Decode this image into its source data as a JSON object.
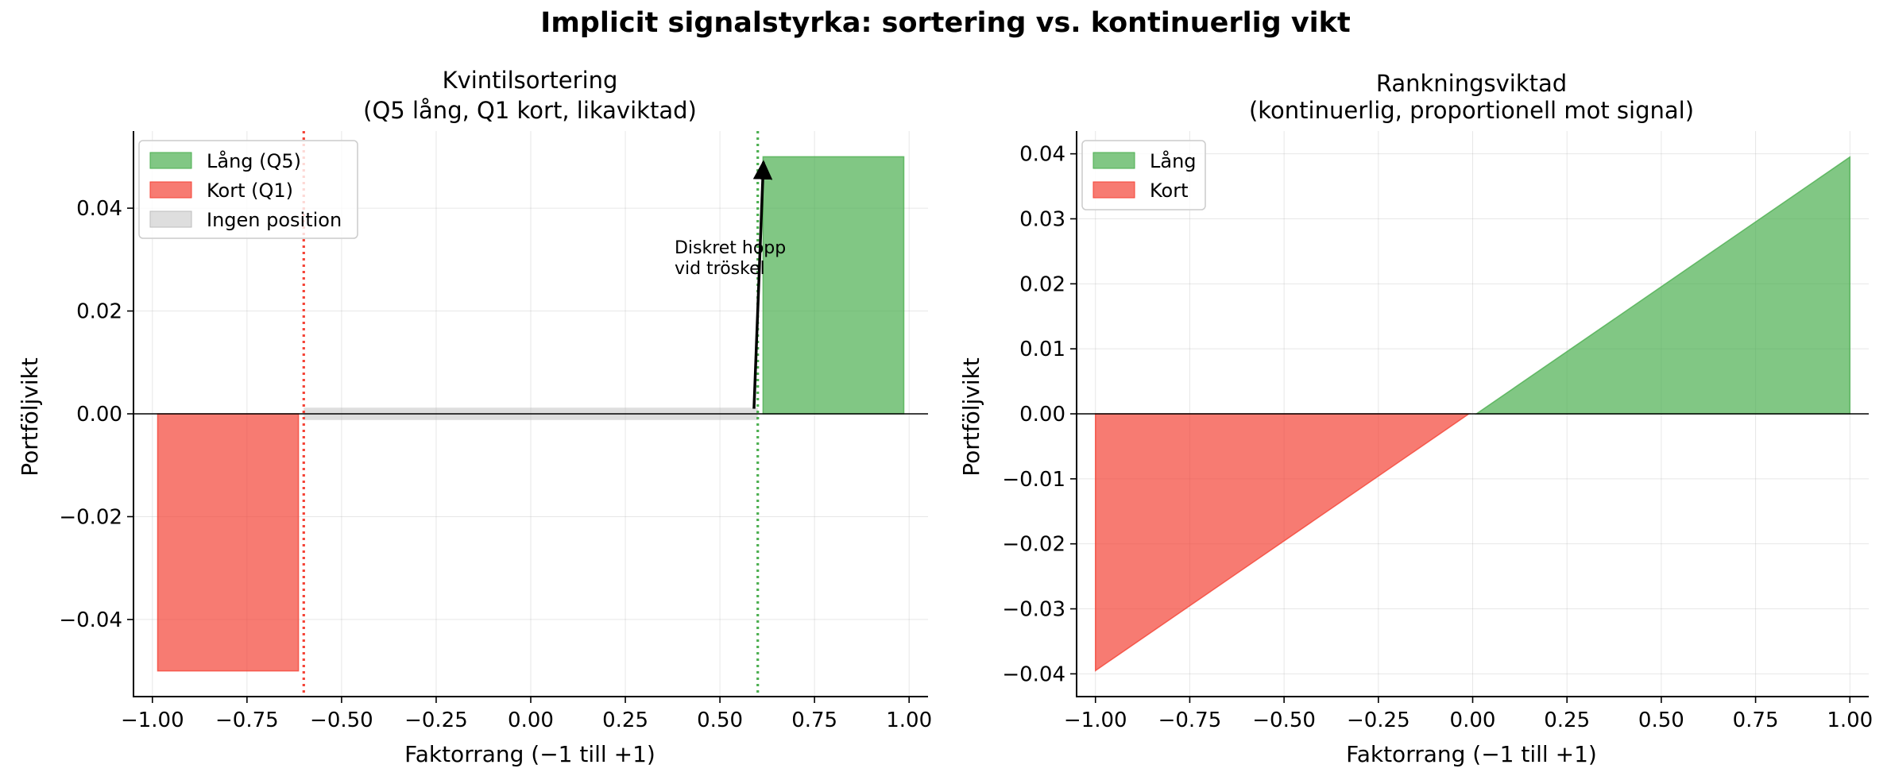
{
  "chart_data": [
    {
      "type": "bar",
      "figure_title": "Implicit signalstyrka: sortering vs. kontinuerlig vikt",
      "title_line1": "Kvintilsortering",
      "title_line2": "(Q5 lång, Q1 kort, likaviktad)",
      "xlabel": "Faktorrang (−1 till +1)",
      "ylabel": "Portföljvikt",
      "xlim": [
        -1.05,
        1.05
      ],
      "ylim": [
        -0.055,
        0.055
      ],
      "xticks": [
        -1.0,
        -0.75,
        -0.5,
        -0.25,
        0.0,
        0.25,
        0.5,
        0.75,
        1.0
      ],
      "xtick_labels": [
        "−1.00",
        "−0.75",
        "−0.50",
        "−0.25",
        "0.00",
        "0.25",
        "0.50",
        "0.75",
        "1.00"
      ],
      "yticks": [
        -0.04,
        -0.02,
        0.0,
        0.02,
        0.04
      ],
      "ytick_labels": [
        "−0.04",
        "−0.02",
        "0.00",
        "0.02",
        "0.04"
      ],
      "legend": [
        {
          "label": "Lång (Q5)",
          "color": "#4caf50"
        },
        {
          "label": "Kort (Q1)",
          "color": "#f44336"
        },
        {
          "label": "Ingen position",
          "color": "#bdbdbd"
        }
      ],
      "bars": [
        {
          "name": "Kort (Q1)",
          "x0": -1.0,
          "x1": -0.6,
          "value": -0.05,
          "color": "#f44336"
        },
        {
          "name": "Ingen position",
          "x0": -0.6,
          "x1": 0.6,
          "value": 0.0,
          "color": "#bdbdbd"
        },
        {
          "name": "Lång (Q5)",
          "x0": 0.6,
          "x1": 1.0,
          "value": 0.05,
          "color": "#4caf50"
        }
      ],
      "thresholds": [
        {
          "x": -0.6,
          "color": "#f44336"
        },
        {
          "x": 0.6,
          "color": "#4caf50"
        }
      ],
      "annotation": {
        "line1": "Diskret hopp",
        "line2": "vid tröskel",
        "text_at": [
          0.38,
          0.03
        ],
        "arrow_from": [
          0.59,
          0.001
        ],
        "arrow_to": [
          0.615,
          0.049
        ]
      },
      "grid": true
    },
    {
      "type": "area",
      "title_line1": "Rankningsviktad",
      "title_line2": "(kontinuerlig, proportionell mot signal)",
      "xlabel": "Faktorrang (−1 till +1)",
      "ylabel": "Portföljvikt",
      "xlim": [
        -1.05,
        1.05
      ],
      "ylim": [
        -0.0435,
        0.0435
      ],
      "xticks": [
        -1.0,
        -0.75,
        -0.5,
        -0.25,
        0.0,
        0.25,
        0.5,
        0.75,
        1.0
      ],
      "xtick_labels": [
        "−1.00",
        "−0.75",
        "−0.50",
        "−0.25",
        "0.00",
        "0.25",
        "0.50",
        "0.75",
        "1.00"
      ],
      "yticks": [
        -0.04,
        -0.03,
        -0.02,
        -0.01,
        0.0,
        0.01,
        0.02,
        0.03,
        0.04
      ],
      "ytick_labels": [
        "−0.04",
        "−0.03",
        "−0.02",
        "−0.01",
        "0.00",
        "0.01",
        "0.02",
        "0.03",
        "0.04"
      ],
      "legend": [
        {
          "label": "Lång",
          "color": "#4caf50"
        },
        {
          "label": "Kort",
          "color": "#f44336"
        }
      ],
      "series": [
        {
          "name": "Lång",
          "x": [
            0.01,
            1.0
          ],
          "y": [
            0.0,
            0.0395
          ],
          "color": "#4caf50"
        },
        {
          "name": "Kort",
          "x": [
            -1.0,
            -0.01
          ],
          "y": [
            -0.0395,
            0.0
          ],
          "color": "#f44336"
        }
      ],
      "grid": true
    }
  ]
}
